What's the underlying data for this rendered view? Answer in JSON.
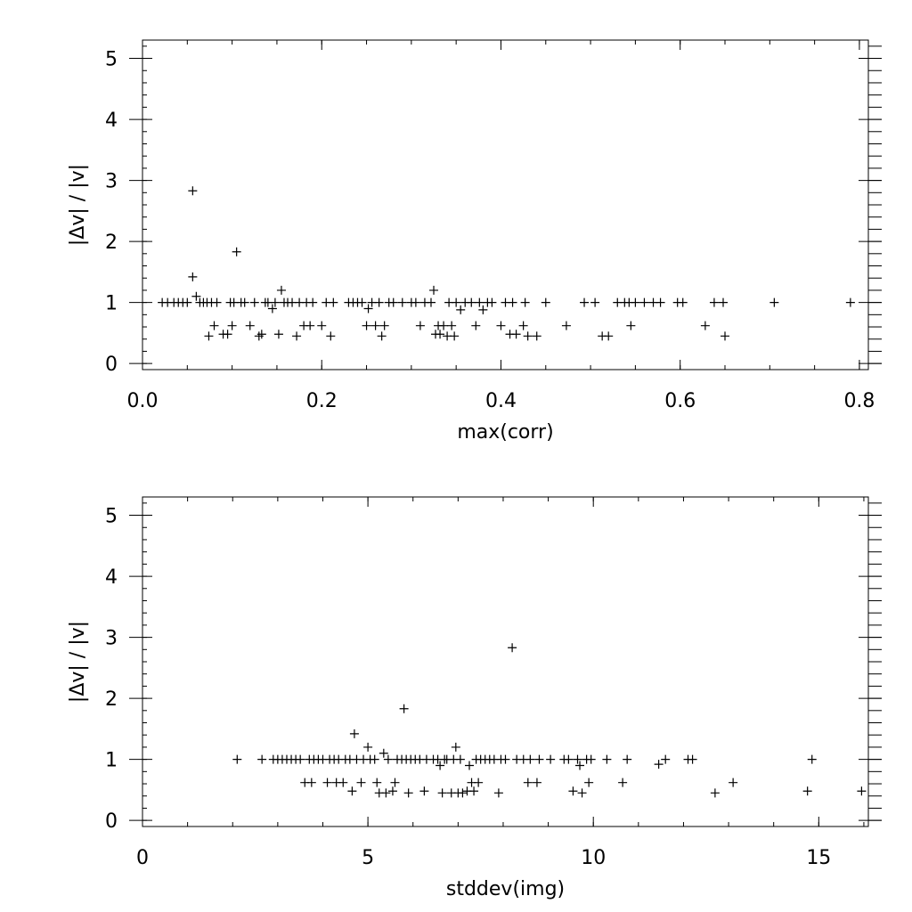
{
  "chart_data": [
    {
      "type": "scatter",
      "marker": "plus",
      "xlabel": "max(corr)",
      "ylabel": "|Δv| / |v|",
      "xlim": [
        0,
        0.81
      ],
      "ylim": [
        -0.1,
        5.3
      ],
      "x_ticks": [
        0,
        0.2,
        0.4,
        0.6,
        0.8
      ],
      "x_tick_labels": [
        "0.0",
        "0.2",
        "0.4",
        "0.6",
        "0.8"
      ],
      "y_ticks": [
        0,
        1,
        2,
        3,
        4,
        5
      ],
      "y_tick_labels": [
        "0",
        "1",
        "2",
        "3",
        "4",
        "5"
      ],
      "x_minor_step": 0.05,
      "y_minor_step": 0.2,
      "points": [
        [
          0.022,
          1
        ],
        [
          0.028,
          1
        ],
        [
          0.035,
          1
        ],
        [
          0.04,
          1
        ],
        [
          0.045,
          1
        ],
        [
          0.05,
          1
        ],
        [
          0.056,
          2.83
        ],
        [
          0.056,
          1.42
        ],
        [
          0.06,
          1.1
        ],
        [
          0.064,
          1
        ],
        [
          0.068,
          1
        ],
        [
          0.072,
          1
        ],
        [
          0.074,
          0.45
        ],
        [
          0.077,
          1
        ],
        [
          0.08,
          0.62
        ],
        [
          0.083,
          1
        ],
        [
          0.09,
          0.48
        ],
        [
          0.095,
          0.48
        ],
        [
          0.098,
          1
        ],
        [
          0.1,
          0.62
        ],
        [
          0.102,
          1
        ],
        [
          0.105,
          1.83
        ],
        [
          0.11,
          1
        ],
        [
          0.114,
          1
        ],
        [
          0.12,
          0.62
        ],
        [
          0.125,
          1
        ],
        [
          0.13,
          0.45
        ],
        [
          0.133,
          0.48
        ],
        [
          0.137,
          1
        ],
        [
          0.14,
          1
        ],
        [
          0.145,
          0.9
        ],
        [
          0.148,
          1
        ],
        [
          0.152,
          0.48
        ],
        [
          0.155,
          1.2
        ],
        [
          0.158,
          1
        ],
        [
          0.162,
          1
        ],
        [
          0.167,
          1
        ],
        [
          0.172,
          0.45
        ],
        [
          0.175,
          1
        ],
        [
          0.18,
          0.62
        ],
        [
          0.183,
          1
        ],
        [
          0.187,
          0.62
        ],
        [
          0.19,
          1
        ],
        [
          0.2,
          0.62
        ],
        [
          0.205,
          1
        ],
        [
          0.21,
          0.45
        ],
        [
          0.213,
          1
        ],
        [
          0.23,
          1
        ],
        [
          0.235,
          1
        ],
        [
          0.24,
          1
        ],
        [
          0.245,
          1
        ],
        [
          0.25,
          0.62
        ],
        [
          0.252,
          0.9
        ],
        [
          0.256,
          1
        ],
        [
          0.26,
          0.62
        ],
        [
          0.264,
          1
        ],
        [
          0.267,
          0.45
        ],
        [
          0.27,
          0.62
        ],
        [
          0.275,
          1
        ],
        [
          0.28,
          1
        ],
        [
          0.29,
          1
        ],
        [
          0.3,
          1
        ],
        [
          0.305,
          1
        ],
        [
          0.31,
          0.62
        ],
        [
          0.315,
          1
        ],
        [
          0.322,
          1
        ],
        [
          0.325,
          1.2
        ],
        [
          0.327,
          0.48
        ],
        [
          0.33,
          0.62
        ],
        [
          0.332,
          0.48
        ],
        [
          0.336,
          0.62
        ],
        [
          0.34,
          0.45
        ],
        [
          0.342,
          1
        ],
        [
          0.345,
          0.62
        ],
        [
          0.348,
          0.45
        ],
        [
          0.35,
          1
        ],
        [
          0.355,
          0.88
        ],
        [
          0.36,
          1
        ],
        [
          0.367,
          1
        ],
        [
          0.372,
          0.62
        ],
        [
          0.376,
          1
        ],
        [
          0.38,
          0.88
        ],
        [
          0.385,
          1
        ],
        [
          0.39,
          1
        ],
        [
          0.4,
          0.62
        ],
        [
          0.405,
          1
        ],
        [
          0.41,
          0.48
        ],
        [
          0.413,
          1
        ],
        [
          0.417,
          0.48
        ],
        [
          0.425,
          0.62
        ],
        [
          0.427,
          1
        ],
        [
          0.43,
          0.45
        ],
        [
          0.44,
          0.45
        ],
        [
          0.45,
          1
        ],
        [
          0.473,
          0.62
        ],
        [
          0.493,
          1
        ],
        [
          0.505,
          1
        ],
        [
          0.513,
          0.45
        ],
        [
          0.52,
          0.45
        ],
        [
          0.53,
          1
        ],
        [
          0.538,
          1
        ],
        [
          0.543,
          1
        ],
        [
          0.545,
          0.62
        ],
        [
          0.55,
          1
        ],
        [
          0.56,
          1
        ],
        [
          0.57,
          1
        ],
        [
          0.578,
          1
        ],
        [
          0.597,
          1
        ],
        [
          0.603,
          1
        ],
        [
          0.628,
          0.62
        ],
        [
          0.638,
          1
        ],
        [
          0.648,
          1
        ],
        [
          0.65,
          0.45
        ],
        [
          0.705,
          1
        ],
        [
          0.79,
          1
        ]
      ]
    },
    {
      "type": "scatter",
      "marker": "plus",
      "xlabel": "stddev(img)",
      "ylabel": "|Δv| / |v|",
      "xlim": [
        0,
        16.1
      ],
      "ylim": [
        -0.1,
        5.3
      ],
      "x_ticks": [
        0,
        5,
        10,
        15
      ],
      "x_tick_labels": [
        "0",
        "5",
        "10",
        "15"
      ],
      "y_ticks": [
        0,
        1,
        2,
        3,
        4,
        5
      ],
      "y_tick_labels": [
        "0",
        "1",
        "2",
        "3",
        "4",
        "5"
      ],
      "x_minor_step": 1,
      "y_minor_step": 0.2,
      "points": [
        [
          2.1,
          1
        ],
        [
          2.65,
          1
        ],
        [
          2.9,
          1
        ],
        [
          3.0,
          1
        ],
        [
          3.1,
          1
        ],
        [
          3.2,
          1
        ],
        [
          3.3,
          1
        ],
        [
          3.4,
          1
        ],
        [
          3.5,
          1
        ],
        [
          3.6,
          0.62
        ],
        [
          3.7,
          1
        ],
        [
          3.75,
          0.62
        ],
        [
          3.8,
          1
        ],
        [
          3.9,
          1
        ],
        [
          4.0,
          1
        ],
        [
          4.1,
          0.62
        ],
        [
          4.15,
          1
        ],
        [
          4.25,
          1
        ],
        [
          4.3,
          0.62
        ],
        [
          4.35,
          1
        ],
        [
          4.45,
          0.62
        ],
        [
          4.5,
          1
        ],
        [
          4.6,
          1
        ],
        [
          4.65,
          0.48
        ],
        [
          4.7,
          1.42
        ],
        [
          4.75,
          1
        ],
        [
          4.85,
          0.62
        ],
        [
          4.9,
          1
        ],
        [
          5.0,
          1.2
        ],
        [
          5.05,
          1
        ],
        [
          5.15,
          1
        ],
        [
          5.2,
          0.62
        ],
        [
          5.25,
          0.45
        ],
        [
          5.35,
          1.1
        ],
        [
          5.4,
          0.45
        ],
        [
          5.45,
          1
        ],
        [
          5.55,
          0.48
        ],
        [
          5.6,
          0.62
        ],
        [
          5.65,
          1
        ],
        [
          5.75,
          1
        ],
        [
          5.8,
          1.83
        ],
        [
          5.85,
          1
        ],
        [
          5.9,
          0.45
        ],
        [
          5.95,
          1
        ],
        [
          6.05,
          1
        ],
        [
          6.15,
          1
        ],
        [
          6.25,
          0.48
        ],
        [
          6.3,
          1
        ],
        [
          6.45,
          1
        ],
        [
          6.55,
          1
        ],
        [
          6.6,
          0.9
        ],
        [
          6.65,
          0.45
        ],
        [
          6.7,
          1
        ],
        [
          6.75,
          1
        ],
        [
          6.85,
          0.45
        ],
        [
          6.9,
          1
        ],
        [
          6.95,
          1.2
        ],
        [
          7.0,
          0.45
        ],
        [
          7.05,
          1
        ],
        [
          7.1,
          0.45
        ],
        [
          7.2,
          0.48
        ],
        [
          7.25,
          0.9
        ],
        [
          7.3,
          0.62
        ],
        [
          7.35,
          0.48
        ],
        [
          7.4,
          1
        ],
        [
          7.45,
          0.62
        ],
        [
          7.5,
          1
        ],
        [
          7.6,
          1
        ],
        [
          7.7,
          1
        ],
        [
          7.8,
          1
        ],
        [
          7.9,
          0.45
        ],
        [
          7.95,
          1
        ],
        [
          8.05,
          1
        ],
        [
          8.2,
          2.83
        ],
        [
          8.3,
          1
        ],
        [
          8.45,
          1
        ],
        [
          8.55,
          0.62
        ],
        [
          8.6,
          1
        ],
        [
          8.75,
          0.62
        ],
        [
          8.8,
          1
        ],
        [
          9.05,
          1
        ],
        [
          9.35,
          1
        ],
        [
          9.45,
          1
        ],
        [
          9.55,
          0.48
        ],
        [
          9.65,
          1
        ],
        [
          9.7,
          0.9
        ],
        [
          9.75,
          0.45
        ],
        [
          9.85,
          1
        ],
        [
          9.9,
          0.62
        ],
        [
          9.95,
          1
        ],
        [
          10.3,
          1
        ],
        [
          10.65,
          0.62
        ],
        [
          10.75,
          1
        ],
        [
          11.45,
          0.92
        ],
        [
          11.6,
          1
        ],
        [
          12.1,
          1
        ],
        [
          12.2,
          1
        ],
        [
          12.7,
          0.45
        ],
        [
          13.1,
          0.62
        ],
        [
          14.75,
          0.48
        ],
        [
          14.85,
          1
        ],
        [
          15.95,
          0.48
        ]
      ]
    }
  ]
}
